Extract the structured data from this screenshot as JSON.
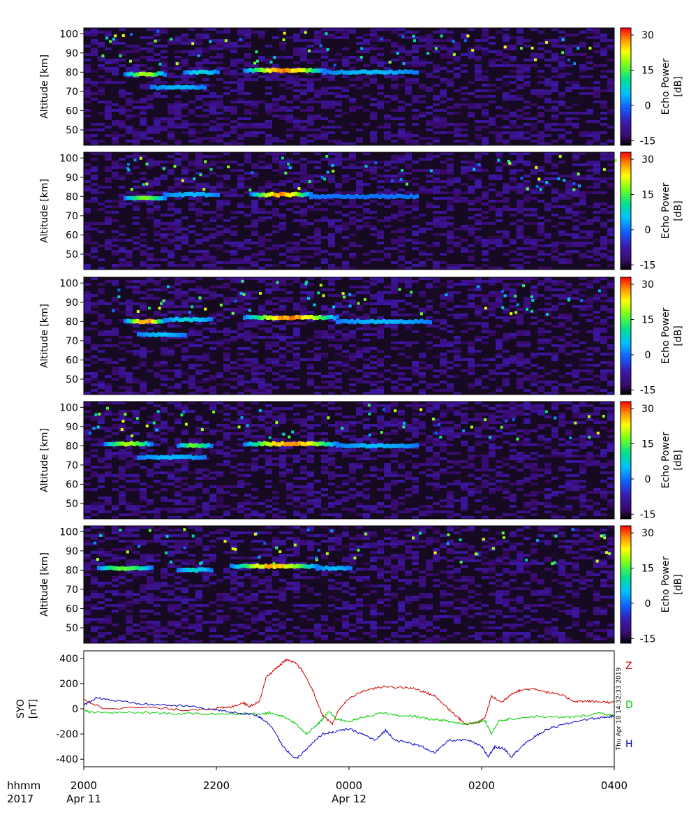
{
  "chart_data": [
    {
      "type": "heatmap",
      "panel": 1,
      "ylabel": "Altitude [km]",
      "yticks": [
        50,
        60,
        70,
        80,
        90,
        100
      ],
      "ylim": [
        42,
        103
      ],
      "xlim_hours": [
        20,
        28
      ],
      "colorbar": {
        "label_line1": "Echo Power",
        "label_line2": "[dB]",
        "ticks": [
          30,
          15,
          0,
          -15
        ],
        "range": [
          -17,
          33
        ]
      },
      "echo_layers": [
        {
          "t_start": 20.6,
          "t_end": 21.2,
          "alt": 79,
          "peak_db": 22
        },
        {
          "t_start": 21.5,
          "t_end": 22.0,
          "alt": 80,
          "peak_db": 8
        },
        {
          "t_start": 21.0,
          "t_end": 21.8,
          "alt": 72,
          "peak_db": 5
        },
        {
          "t_start": 22.4,
          "t_end": 23.6,
          "alt": 81,
          "peak_db": 30
        },
        {
          "t_start": 23.6,
          "t_end": 25.0,
          "alt": 80,
          "peak_db": 5
        }
      ]
    },
    {
      "type": "heatmap",
      "panel": 2,
      "ylabel": "Altitude [km]",
      "yticks": [
        50,
        60,
        70,
        80,
        90,
        100
      ],
      "ylim": [
        42,
        103
      ],
      "xlim_hours": [
        20,
        28
      ],
      "colorbar": {
        "label_line1": "Echo Power",
        "label_line2": "[dB]",
        "ticks": [
          30,
          15,
          0,
          -15
        ],
        "range": [
          -17,
          33
        ]
      },
      "echo_layers": [
        {
          "t_start": 20.6,
          "t_end": 21.2,
          "alt": 79,
          "peak_db": 18
        },
        {
          "t_start": 21.2,
          "t_end": 22.0,
          "alt": 81,
          "peak_db": 5
        },
        {
          "t_start": 22.5,
          "t_end": 23.4,
          "alt": 81,
          "peak_db": 30
        },
        {
          "t_start": 23.4,
          "t_end": 25.0,
          "alt": 80,
          "peak_db": 0
        }
      ]
    },
    {
      "type": "heatmap",
      "panel": 3,
      "ylabel": "Altitude [km]",
      "yticks": [
        50,
        60,
        70,
        80,
        90,
        100
      ],
      "ylim": [
        42,
        103
      ],
      "xlim_hours": [
        20,
        28
      ],
      "colorbar": {
        "label_line1": "Echo Power",
        "label_line2": "[dB]",
        "ticks": [
          30,
          15,
          0,
          -15
        ],
        "range": [
          -17,
          33
        ]
      },
      "echo_layers": [
        {
          "t_start": 20.6,
          "t_end": 21.2,
          "alt": 80,
          "peak_db": 30
        },
        {
          "t_start": 21.2,
          "t_end": 21.9,
          "alt": 81,
          "peak_db": 8
        },
        {
          "t_start": 20.8,
          "t_end": 21.5,
          "alt": 73,
          "peak_db": 5
        },
        {
          "t_start": 22.4,
          "t_end": 23.8,
          "alt": 82,
          "peak_db": 30
        },
        {
          "t_start": 23.8,
          "t_end": 25.2,
          "alt": 80,
          "peak_db": 5
        }
      ]
    },
    {
      "type": "heatmap",
      "panel": 4,
      "ylabel": "Altitude [km]",
      "yticks": [
        50,
        60,
        70,
        80,
        90,
        100
      ],
      "ylim": [
        42,
        103
      ],
      "xlim_hours": [
        20,
        28
      ],
      "colorbar": {
        "label_line1": "Echo Power",
        "label_line2": "[dB]",
        "ticks": [
          30,
          15,
          0,
          -15
        ],
        "range": [
          -17,
          33
        ]
      },
      "echo_layers": [
        {
          "t_start": 20.3,
          "t_end": 21.0,
          "alt": 81,
          "peak_db": 22
        },
        {
          "t_start": 21.4,
          "t_end": 21.9,
          "alt": 80,
          "peak_db": 18
        },
        {
          "t_start": 20.8,
          "t_end": 21.8,
          "alt": 74,
          "peak_db": 5
        },
        {
          "t_start": 22.4,
          "t_end": 23.8,
          "alt": 81,
          "peak_db": 30
        },
        {
          "t_start": 23.8,
          "t_end": 25.0,
          "alt": 80,
          "peak_db": 5
        }
      ]
    },
    {
      "type": "heatmap",
      "panel": 5,
      "ylabel": "Altitude [km]",
      "yticks": [
        50,
        60,
        70,
        80,
        90,
        100
      ],
      "ylim": [
        42,
        103
      ],
      "xlim_hours": [
        20,
        28
      ],
      "colorbar": {
        "label_line1": "Echo Power",
        "label_line2": "[dB]",
        "ticks": [
          30,
          15,
          0,
          -15
        ],
        "range": [
          -17,
          33
        ]
      },
      "echo_layers": [
        {
          "t_start": 20.2,
          "t_end": 21.0,
          "alt": 81,
          "peak_db": 18
        },
        {
          "t_start": 21.4,
          "t_end": 21.9,
          "alt": 80,
          "peak_db": 8
        },
        {
          "t_start": 22.2,
          "t_end": 23.5,
          "alt": 82,
          "peak_db": 28
        },
        {
          "t_start": 23.5,
          "t_end": 24.0,
          "alt": 81,
          "peak_db": 5
        }
      ]
    },
    {
      "type": "line",
      "ylabel_line1": "SYO",
      "ylabel_line2": "[nT]",
      "yticks": [
        400,
        200,
        0,
        -200,
        -400
      ],
      "ylim": [
        -460,
        460
      ],
      "xlim_hours": [
        20,
        28
      ],
      "stamp": "Thu Apr 18 14:32:33 2019",
      "series": [
        {
          "name": "Z",
          "color": "#d00000",
          "points": [
            [
              20.0,
              70
            ],
            [
              20.3,
              5
            ],
            [
              21.0,
              10
            ],
            [
              21.5,
              -10
            ],
            [
              22.0,
              5
            ],
            [
              22.2,
              10
            ],
            [
              22.4,
              50
            ],
            [
              22.5,
              20
            ],
            [
              22.65,
              60
            ],
            [
              22.75,
              250
            ],
            [
              22.9,
              320
            ],
            [
              23.05,
              390
            ],
            [
              23.2,
              360
            ],
            [
              23.3,
              300
            ],
            [
              23.45,
              150
            ],
            [
              23.6,
              -50
            ],
            [
              23.75,
              -120
            ],
            [
              23.85,
              0
            ],
            [
              24.0,
              80
            ],
            [
              24.2,
              140
            ],
            [
              24.5,
              175
            ],
            [
              24.8,
              170
            ],
            [
              25.0,
              160
            ],
            [
              25.15,
              130
            ],
            [
              25.3,
              100
            ],
            [
              25.5,
              0
            ],
            [
              25.65,
              -70
            ],
            [
              25.75,
              -120
            ],
            [
              25.95,
              -110
            ],
            [
              26.05,
              -70
            ],
            [
              26.15,
              100
            ],
            [
              26.3,
              50
            ],
            [
              26.45,
              120
            ],
            [
              26.6,
              150
            ],
            [
              26.8,
              160
            ],
            [
              27.0,
              130
            ],
            [
              27.2,
              110
            ],
            [
              27.4,
              60
            ],
            [
              27.6,
              60
            ],
            [
              27.8,
              55
            ],
            [
              28.0,
              50
            ]
          ]
        },
        {
          "name": "D",
          "color": "#00cc00",
          "points": [
            [
              20.0,
              -10
            ],
            [
              20.1,
              -30
            ],
            [
              20.5,
              -30
            ],
            [
              21.0,
              -30
            ],
            [
              21.5,
              -40
            ],
            [
              22.0,
              -40
            ],
            [
              22.4,
              -40
            ],
            [
              22.7,
              -40
            ],
            [
              22.8,
              -30
            ],
            [
              23.0,
              -60
            ],
            [
              23.2,
              -120
            ],
            [
              23.35,
              -200
            ],
            [
              23.5,
              -140
            ],
            [
              23.6,
              -80
            ],
            [
              23.7,
              -20
            ],
            [
              23.8,
              -80
            ],
            [
              24.0,
              -100
            ],
            [
              24.2,
              -70
            ],
            [
              24.5,
              -30
            ],
            [
              24.8,
              -60
            ],
            [
              25.0,
              -60
            ],
            [
              25.2,
              -80
            ],
            [
              25.4,
              -90
            ],
            [
              25.6,
              -110
            ],
            [
              25.75,
              -120
            ],
            [
              25.9,
              -110
            ],
            [
              26.05,
              -90
            ],
            [
              26.15,
              -200
            ],
            [
              26.25,
              -100
            ],
            [
              26.45,
              -80
            ],
            [
              26.8,
              -60
            ],
            [
              27.2,
              -70
            ],
            [
              27.5,
              -60
            ],
            [
              27.8,
              -30
            ],
            [
              28.0,
              -60
            ]
          ]
        },
        {
          "name": "H",
          "color": "#0000cc",
          "points": [
            [
              20.0,
              30
            ],
            [
              20.2,
              90
            ],
            [
              20.4,
              70
            ],
            [
              20.8,
              40
            ],
            [
              21.2,
              30
            ],
            [
              21.6,
              20
            ],
            [
              22.0,
              -10
            ],
            [
              22.3,
              -30
            ],
            [
              22.6,
              -50
            ],
            [
              22.7,
              -80
            ],
            [
              22.85,
              -150
            ],
            [
              23.0,
              -300
            ],
            [
              23.2,
              -400
            ],
            [
              23.4,
              -300
            ],
            [
              23.6,
              -200
            ],
            [
              23.8,
              -180
            ],
            [
              24.0,
              -160
            ],
            [
              24.2,
              -200
            ],
            [
              24.4,
              -250
            ],
            [
              24.55,
              -170
            ],
            [
              24.7,
              -250
            ],
            [
              24.9,
              -270
            ],
            [
              25.1,
              -300
            ],
            [
              25.3,
              -350
            ],
            [
              25.5,
              -250
            ],
            [
              25.8,
              -250
            ],
            [
              26.0,
              -300
            ],
            [
              26.1,
              -380
            ],
            [
              26.2,
              -300
            ],
            [
              26.35,
              -320
            ],
            [
              26.45,
              -380
            ],
            [
              26.6,
              -300
            ],
            [
              26.8,
              -220
            ],
            [
              27.0,
              -160
            ],
            [
              27.2,
              -130
            ],
            [
              27.5,
              -90
            ],
            [
              27.8,
              -70
            ],
            [
              28.0,
              -60
            ]
          ]
        }
      ]
    }
  ],
  "xaxis": {
    "row1_label": "hhmm",
    "row2_label": "2017",
    "ticks": [
      {
        "hour": 20,
        "time": "2000",
        "date": "Apr 11"
      },
      {
        "hour": 22,
        "time": "2200",
        "date": ""
      },
      {
        "hour": 24,
        "time": "0000",
        "date": "Apr 12"
      },
      {
        "hour": 26,
        "time": "0200",
        "date": ""
      },
      {
        "hour": 28,
        "time": "0400",
        "date": ""
      }
    ]
  }
}
